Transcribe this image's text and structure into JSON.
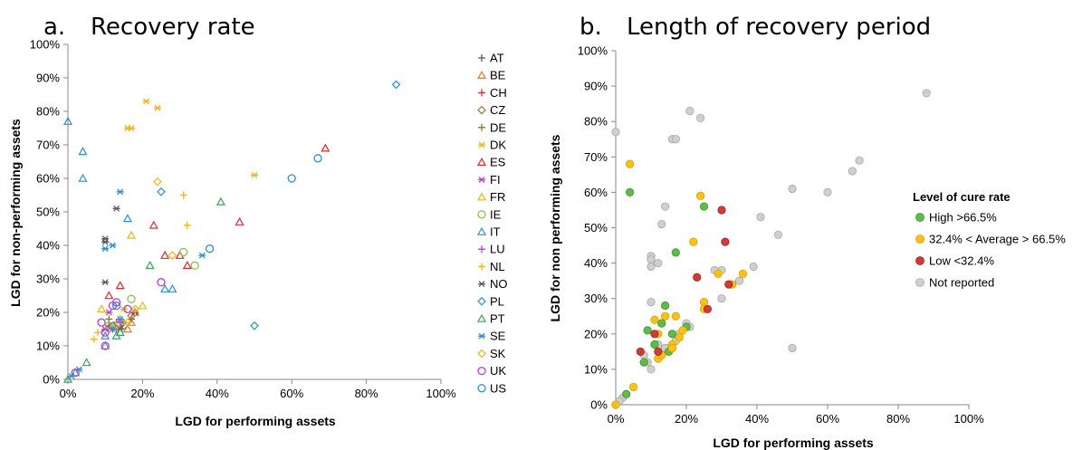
{
  "chart_data": [
    {
      "type": "scatter",
      "panel_label": "a.",
      "title": "Recovery rate",
      "xlabel": "LGD for performing assets",
      "ylabel": "LGD for non-performing assets",
      "xlim": [
        0,
        100
      ],
      "ylim": [
        0,
        100
      ],
      "x_ticks": [
        "0%",
        "20%",
        "40%",
        "60%",
        "80%",
        "100%"
      ],
      "y_ticks": [
        "0%",
        "10%",
        "20%",
        "30%",
        "40%",
        "50%",
        "60%",
        "70%",
        "80%",
        "90%",
        "100%"
      ],
      "grid": false,
      "legend_position": "right",
      "series": [
        {
          "name": "AT",
          "marker": "plus",
          "color": "#595959",
          "points": [
            [
              12,
              15
            ],
            [
              14,
              16
            ],
            [
              17,
              18
            ]
          ]
        },
        {
          "name": "BE",
          "marker": "triangle",
          "color": "#e07b39",
          "points": [
            [
              16,
              15
            ],
            [
              17,
              17
            ],
            [
              18,
              20
            ]
          ]
        },
        {
          "name": "CH",
          "marker": "plus",
          "color": "#e8262b",
          "points": [
            [
              11,
              16
            ],
            [
              13,
              17
            ]
          ]
        },
        {
          "name": "CZ",
          "marker": "diamond",
          "color": "#b0703a",
          "points": [
            [
              15,
              16
            ],
            [
              17,
              19
            ]
          ]
        },
        {
          "name": "DE",
          "marker": "plus",
          "color": "#6f7f2a",
          "points": [
            [
              11,
              18
            ],
            [
              15,
              17
            ]
          ]
        },
        {
          "name": "DK",
          "marker": "star",
          "color": "#f5b40f",
          "points": [
            [
              21,
              83
            ],
            [
              24,
              81
            ],
            [
              16,
              75
            ],
            [
              17,
              75
            ],
            [
              50,
              61
            ],
            [
              15,
              21
            ],
            [
              12,
              16
            ]
          ]
        },
        {
          "name": "ES",
          "marker": "triangle",
          "color": "#e8262b",
          "points": [
            [
              69,
              69
            ],
            [
              46,
              47
            ],
            [
              23,
              46
            ],
            [
              26,
              37
            ],
            [
              30,
              37
            ],
            [
              32,
              34
            ],
            [
              14,
              28
            ],
            [
              11,
              25
            ]
          ]
        },
        {
          "name": "FI",
          "marker": "star",
          "color": "#c03ad8",
          "points": [
            [
              11,
              20
            ],
            [
              10,
              15
            ]
          ]
        },
        {
          "name": "FR",
          "marker": "triangle",
          "color": "#f5b40f",
          "points": [
            [
              17,
              43
            ],
            [
              9,
              21
            ],
            [
              20,
              22
            ],
            [
              14,
              18
            ]
          ]
        },
        {
          "name": "IE",
          "marker": "circle",
          "color": "#8bc34a",
          "points": [
            [
              17,
              24
            ],
            [
              31,
              38
            ],
            [
              34,
              34
            ],
            [
              11,
              16
            ]
          ]
        },
        {
          "name": "IT",
          "marker": "triangle",
          "color": "#2a8fd6",
          "points": [
            [
              0,
              77
            ],
            [
              4,
              68
            ],
            [
              4,
              60
            ],
            [
              16,
              48
            ],
            [
              26,
              27
            ],
            [
              28,
              27
            ],
            [
              10,
              13
            ]
          ]
        },
        {
          "name": "LU",
          "marker": "plus",
          "color": "#c03ad8",
          "points": [
            [
              13,
              15
            ],
            [
              14,
              17
            ]
          ]
        },
        {
          "name": "NL",
          "marker": "plus",
          "color": "#f5b40f",
          "points": [
            [
              31,
              55
            ],
            [
              32,
              46
            ],
            [
              7,
              12
            ],
            [
              8,
              14
            ],
            [
              13,
              16
            ]
          ]
        },
        {
          "name": "NO",
          "marker": "star",
          "color": "#595959",
          "points": [
            [
              13,
              51
            ],
            [
              10,
              42
            ],
            [
              10,
              41
            ],
            [
              10,
              29
            ],
            [
              14,
              15
            ],
            [
              18,
              20
            ]
          ]
        },
        {
          "name": "PL",
          "marker": "diamond",
          "color": "#2a8fd6",
          "points": [
            [
              88,
              88
            ],
            [
              25,
              56
            ],
            [
              50,
              16
            ],
            [
              12,
              16
            ]
          ]
        },
        {
          "name": "PT",
          "marker": "triangle",
          "color": "#3aa35a",
          "points": [
            [
              41,
              53
            ],
            [
              22,
              34
            ],
            [
              2,
              2
            ],
            [
              0,
              0
            ],
            [
              5,
              5
            ],
            [
              10,
              10
            ],
            [
              13,
              13
            ],
            [
              14,
              14
            ]
          ]
        },
        {
          "name": "SE",
          "marker": "star",
          "color": "#2a8fd6",
          "points": [
            [
              14,
              56
            ],
            [
              10,
              39
            ],
            [
              12,
              40
            ],
            [
              36,
              37
            ],
            [
              14,
              18
            ],
            [
              12,
              15
            ],
            [
              3,
              3
            ],
            [
              1,
              1
            ]
          ]
        },
        {
          "name": "SK",
          "marker": "diamond",
          "color": "#f5b40f",
          "points": [
            [
              24,
              59
            ],
            [
              28,
              37
            ],
            [
              18,
              21
            ],
            [
              16,
              17
            ]
          ]
        },
        {
          "name": "UK",
          "marker": "circle",
          "color": "#c03ad8",
          "points": [
            [
              13,
              23
            ],
            [
              12,
              22
            ],
            [
              9,
              17
            ],
            [
              10,
              14
            ],
            [
              10,
              10
            ],
            [
              2,
              2
            ],
            [
              16,
              21
            ],
            [
              25,
              29
            ]
          ]
        },
        {
          "name": "US",
          "marker": "circle",
          "color": "#2a8fd6",
          "points": [
            [
              67,
              66
            ],
            [
              60,
              60
            ],
            [
              38,
              39
            ],
            [
              13,
              22
            ]
          ]
        }
      ]
    },
    {
      "type": "scatter",
      "panel_label": "b.",
      "title": "Length of recovery period",
      "xlabel": "LGD for performing assets",
      "ylabel": "LGD for non performing assets",
      "xlim": [
        0,
        100
      ],
      "ylim": [
        0,
        100
      ],
      "x_ticks": [
        "0%",
        "20%",
        "40%",
        "60%",
        "80%",
        "100%"
      ],
      "y_ticks": [
        "0%",
        "10%",
        "20%",
        "30%",
        "40%",
        "50%",
        "60%",
        "70%",
        "80%",
        "90%",
        "100%"
      ],
      "grid": false,
      "legend_title": "Level of cure rate",
      "legend_position": "right",
      "series": [
        {
          "name": "High >66.5%",
          "marker": "circle",
          "color": "#5bbf45",
          "edge": "#3f8f2f",
          "points": [
            [
              4,
              60
            ],
            [
              25,
              56
            ],
            [
              17,
              43
            ],
            [
              14,
              28
            ],
            [
              9,
              21
            ],
            [
              13,
              23
            ],
            [
              20,
              22
            ],
            [
              16,
              20
            ],
            [
              8,
              12
            ],
            [
              3,
              3
            ],
            [
              11,
              17
            ],
            [
              15,
              15
            ]
          ]
        },
        {
          "name": "32.4% < Average > 66.5%",
          "marker": "circle",
          "color": "#ffc20e",
          "edge": "#d9a000",
          "points": [
            [
              4,
              68
            ],
            [
              24,
              59
            ],
            [
              22,
              46
            ],
            [
              36,
              37
            ],
            [
              29,
              37
            ],
            [
              33,
              34
            ],
            [
              25,
              29
            ],
            [
              25,
              27
            ],
            [
              14,
              25
            ],
            [
              17,
              25
            ],
            [
              11,
              24
            ],
            [
              12,
              20
            ],
            [
              18,
              19
            ],
            [
              16,
              17
            ],
            [
              12,
              13
            ],
            [
              13,
              14
            ],
            [
              19,
              21
            ],
            [
              5,
              5
            ],
            [
              0,
              0
            ],
            [
              16,
              16
            ]
          ]
        },
        {
          "name": "Low <32.4%",
          "marker": "circle",
          "color": "#d03b37",
          "edge": "#a02622",
          "points": [
            [
              30,
              55
            ],
            [
              31,
              46
            ],
            [
              23,
              36
            ],
            [
              32,
              34
            ],
            [
              26,
              27
            ],
            [
              11,
              20
            ],
            [
              7,
              15
            ],
            [
              12,
              15
            ]
          ]
        },
        {
          "name": "Not reported",
          "marker": "circle",
          "color": "#cfcfcf",
          "edge": "#a8a8a8",
          "points": [
            [
              88,
              88
            ],
            [
              21,
              83
            ],
            [
              24,
              81
            ],
            [
              16,
              75
            ],
            [
              17,
              75
            ],
            [
              0,
              77
            ],
            [
              69,
              69
            ],
            [
              67,
              66
            ],
            [
              50,
              61
            ],
            [
              60,
              60
            ],
            [
              14,
              56
            ],
            [
              13,
              51
            ],
            [
              41,
              53
            ],
            [
              46,
              48
            ],
            [
              10,
              42
            ],
            [
              10,
              41
            ],
            [
              10,
              39
            ],
            [
              12,
              40
            ],
            [
              39,
              39
            ],
            [
              30,
              38
            ],
            [
              28,
              38
            ],
            [
              30,
              30
            ],
            [
              35,
              35
            ],
            [
              10,
              29
            ],
            [
              20,
              23
            ],
            [
              21,
              22
            ],
            [
              18,
              20
            ],
            [
              17,
              18
            ],
            [
              15,
              16
            ],
            [
              14,
              16
            ],
            [
              10,
              10
            ],
            [
              50,
              16
            ],
            [
              2,
              2
            ],
            [
              1,
              1
            ],
            [
              8,
              14
            ],
            [
              9,
              12
            ],
            [
              12,
              17
            ],
            [
              14,
              16
            ]
          ]
        }
      ]
    }
  ]
}
